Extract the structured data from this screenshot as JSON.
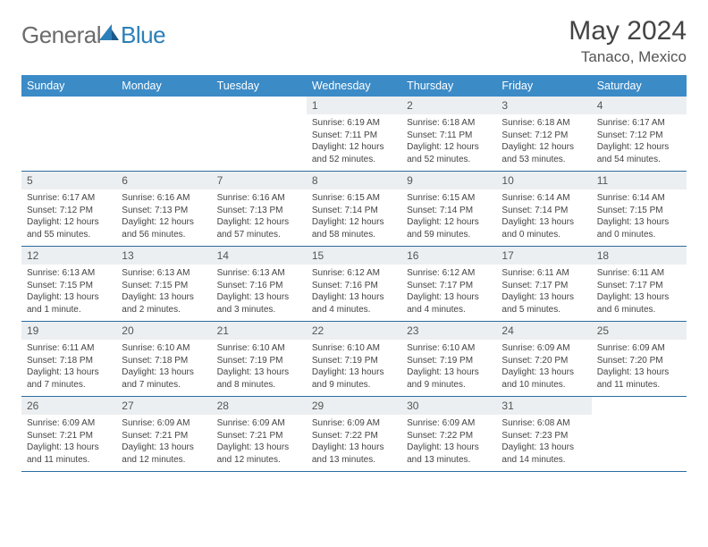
{
  "logo": {
    "part1": "General",
    "part2": "Blue"
  },
  "title": "May 2024",
  "location": "Tanaco, Mexico",
  "header_bg": "#3b8bc7",
  "daynum_bg": "#eceff1",
  "border_color": "#2c6ca0",
  "weekdays": [
    "Sunday",
    "Monday",
    "Tuesday",
    "Wednesday",
    "Thursday",
    "Friday",
    "Saturday"
  ],
  "weeks": [
    [
      {
        "n": "",
        "sr": "",
        "ss": "",
        "dl": ""
      },
      {
        "n": "",
        "sr": "",
        "ss": "",
        "dl": ""
      },
      {
        "n": "",
        "sr": "",
        "ss": "",
        "dl": ""
      },
      {
        "n": "1",
        "sr": "Sunrise: 6:19 AM",
        "ss": "Sunset: 7:11 PM",
        "dl": "Daylight: 12 hours and 52 minutes."
      },
      {
        "n": "2",
        "sr": "Sunrise: 6:18 AM",
        "ss": "Sunset: 7:11 PM",
        "dl": "Daylight: 12 hours and 52 minutes."
      },
      {
        "n": "3",
        "sr": "Sunrise: 6:18 AM",
        "ss": "Sunset: 7:12 PM",
        "dl": "Daylight: 12 hours and 53 minutes."
      },
      {
        "n": "4",
        "sr": "Sunrise: 6:17 AM",
        "ss": "Sunset: 7:12 PM",
        "dl": "Daylight: 12 hours and 54 minutes."
      }
    ],
    [
      {
        "n": "5",
        "sr": "Sunrise: 6:17 AM",
        "ss": "Sunset: 7:12 PM",
        "dl": "Daylight: 12 hours and 55 minutes."
      },
      {
        "n": "6",
        "sr": "Sunrise: 6:16 AM",
        "ss": "Sunset: 7:13 PM",
        "dl": "Daylight: 12 hours and 56 minutes."
      },
      {
        "n": "7",
        "sr": "Sunrise: 6:16 AM",
        "ss": "Sunset: 7:13 PM",
        "dl": "Daylight: 12 hours and 57 minutes."
      },
      {
        "n": "8",
        "sr": "Sunrise: 6:15 AM",
        "ss": "Sunset: 7:14 PM",
        "dl": "Daylight: 12 hours and 58 minutes."
      },
      {
        "n": "9",
        "sr": "Sunrise: 6:15 AM",
        "ss": "Sunset: 7:14 PM",
        "dl": "Daylight: 12 hours and 59 minutes."
      },
      {
        "n": "10",
        "sr": "Sunrise: 6:14 AM",
        "ss": "Sunset: 7:14 PM",
        "dl": "Daylight: 13 hours and 0 minutes."
      },
      {
        "n": "11",
        "sr": "Sunrise: 6:14 AM",
        "ss": "Sunset: 7:15 PM",
        "dl": "Daylight: 13 hours and 0 minutes."
      }
    ],
    [
      {
        "n": "12",
        "sr": "Sunrise: 6:13 AM",
        "ss": "Sunset: 7:15 PM",
        "dl": "Daylight: 13 hours and 1 minute."
      },
      {
        "n": "13",
        "sr": "Sunrise: 6:13 AM",
        "ss": "Sunset: 7:15 PM",
        "dl": "Daylight: 13 hours and 2 minutes."
      },
      {
        "n": "14",
        "sr": "Sunrise: 6:13 AM",
        "ss": "Sunset: 7:16 PM",
        "dl": "Daylight: 13 hours and 3 minutes."
      },
      {
        "n": "15",
        "sr": "Sunrise: 6:12 AM",
        "ss": "Sunset: 7:16 PM",
        "dl": "Daylight: 13 hours and 4 minutes."
      },
      {
        "n": "16",
        "sr": "Sunrise: 6:12 AM",
        "ss": "Sunset: 7:17 PM",
        "dl": "Daylight: 13 hours and 4 minutes."
      },
      {
        "n": "17",
        "sr": "Sunrise: 6:11 AM",
        "ss": "Sunset: 7:17 PM",
        "dl": "Daylight: 13 hours and 5 minutes."
      },
      {
        "n": "18",
        "sr": "Sunrise: 6:11 AM",
        "ss": "Sunset: 7:17 PM",
        "dl": "Daylight: 13 hours and 6 minutes."
      }
    ],
    [
      {
        "n": "19",
        "sr": "Sunrise: 6:11 AM",
        "ss": "Sunset: 7:18 PM",
        "dl": "Daylight: 13 hours and 7 minutes."
      },
      {
        "n": "20",
        "sr": "Sunrise: 6:10 AM",
        "ss": "Sunset: 7:18 PM",
        "dl": "Daylight: 13 hours and 7 minutes."
      },
      {
        "n": "21",
        "sr": "Sunrise: 6:10 AM",
        "ss": "Sunset: 7:19 PM",
        "dl": "Daylight: 13 hours and 8 minutes."
      },
      {
        "n": "22",
        "sr": "Sunrise: 6:10 AM",
        "ss": "Sunset: 7:19 PM",
        "dl": "Daylight: 13 hours and 9 minutes."
      },
      {
        "n": "23",
        "sr": "Sunrise: 6:10 AM",
        "ss": "Sunset: 7:19 PM",
        "dl": "Daylight: 13 hours and 9 minutes."
      },
      {
        "n": "24",
        "sr": "Sunrise: 6:09 AM",
        "ss": "Sunset: 7:20 PM",
        "dl": "Daylight: 13 hours and 10 minutes."
      },
      {
        "n": "25",
        "sr": "Sunrise: 6:09 AM",
        "ss": "Sunset: 7:20 PM",
        "dl": "Daylight: 13 hours and 11 minutes."
      }
    ],
    [
      {
        "n": "26",
        "sr": "Sunrise: 6:09 AM",
        "ss": "Sunset: 7:21 PM",
        "dl": "Daylight: 13 hours and 11 minutes."
      },
      {
        "n": "27",
        "sr": "Sunrise: 6:09 AM",
        "ss": "Sunset: 7:21 PM",
        "dl": "Daylight: 13 hours and 12 minutes."
      },
      {
        "n": "28",
        "sr": "Sunrise: 6:09 AM",
        "ss": "Sunset: 7:21 PM",
        "dl": "Daylight: 13 hours and 12 minutes."
      },
      {
        "n": "29",
        "sr": "Sunrise: 6:09 AM",
        "ss": "Sunset: 7:22 PM",
        "dl": "Daylight: 13 hours and 13 minutes."
      },
      {
        "n": "30",
        "sr": "Sunrise: 6:09 AM",
        "ss": "Sunset: 7:22 PM",
        "dl": "Daylight: 13 hours and 13 minutes."
      },
      {
        "n": "31",
        "sr": "Sunrise: 6:08 AM",
        "ss": "Sunset: 7:23 PM",
        "dl": "Daylight: 13 hours and 14 minutes."
      },
      {
        "n": "",
        "sr": "",
        "ss": "",
        "dl": ""
      }
    ]
  ]
}
